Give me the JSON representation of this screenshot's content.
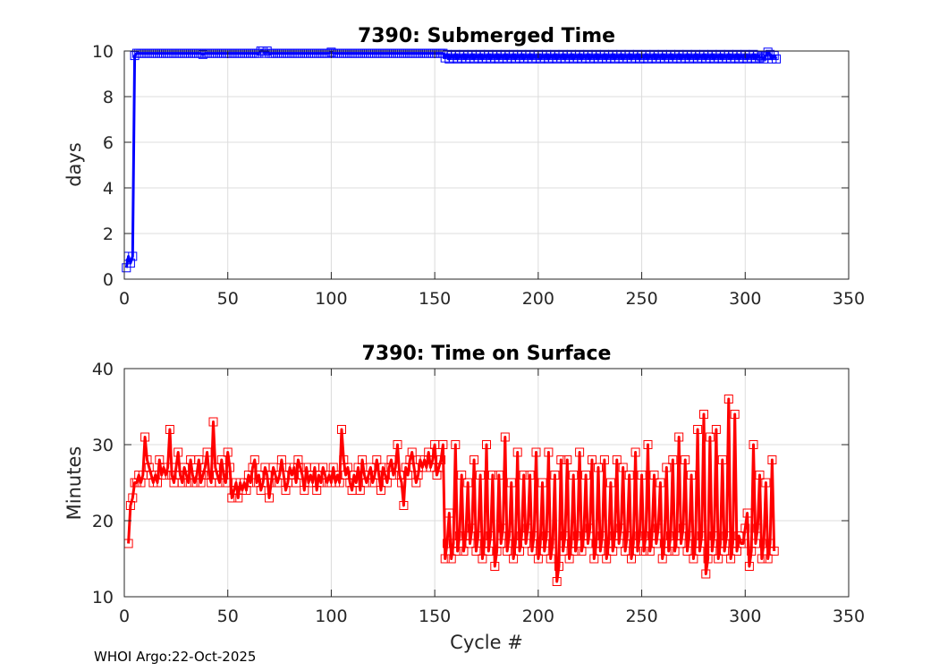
{
  "footer": "WHOI Argo:22-Oct-2025",
  "colors": {
    "top_series": "#0000ff",
    "bottom_series": "#ff0000",
    "grid": "#dcdcdc",
    "axes": "#262626"
  },
  "chart_data": [
    {
      "type": "line",
      "title": "7390: Submerged Time",
      "xlabel": "",
      "ylabel": "days",
      "xlim": [
        0,
        350
      ],
      "ylim": [
        0,
        10
      ],
      "xticks": [
        0,
        50,
        100,
        150,
        200,
        250,
        300,
        350
      ],
      "yticks": [
        0,
        2,
        4,
        6,
        8,
        10
      ],
      "grid": true,
      "marker": "square",
      "series": [
        {
          "name": "Submerged Time",
          "segments": [
            {
              "x_start": 1,
              "x_end": 5,
              "values": [
                0.5,
                1.0,
                0.7,
                1.0,
                9.8
              ]
            },
            {
              "x_start": 6,
              "x_end": 154,
              "constant": 9.9,
              "bumps": [
                [
                  66,
                  10.0
                ],
                [
                  67,
                  10.0
                ],
                [
                  69,
                  10.0
                ],
                [
                  38,
                  9.85
                ],
                [
                  100,
                  9.95
                ]
              ]
            },
            {
              "x_start": 155,
              "x_end": 315,
              "pattern": [
                9.7,
                9.85,
                9.65,
                9.8
              ],
              "bumps": [
                [
                  311,
                  9.95
                ],
                [
                  308,
                  9.75
                ],
                [
                  315,
                  9.65
                ]
              ]
            }
          ]
        }
      ]
    },
    {
      "type": "line",
      "title": "7390: Time on Surface",
      "xlabel": "Cycle #",
      "ylabel": "Minutes",
      "xlim": [
        0,
        350
      ],
      "ylim": [
        10,
        40
      ],
      "xticks": [
        0,
        50,
        100,
        150,
        200,
        250,
        300,
        350
      ],
      "yticks": [
        10,
        20,
        30,
        40
      ],
      "grid": true,
      "marker": "square",
      "series": [
        {
          "name": "Time on Surface",
          "x_start": 2,
          "values": [
            17,
            22,
            23,
            25,
            25,
            26,
            25,
            26,
            31,
            28,
            27,
            26,
            25,
            26,
            25,
            28,
            26,
            27,
            26,
            27,
            32,
            26,
            25,
            27,
            29,
            26,
            25,
            27,
            26,
            25,
            28,
            26,
            25,
            26,
            28,
            25,
            26,
            27,
            29,
            26,
            25,
            33,
            27,
            26,
            25,
            28,
            26,
            25,
            29,
            27,
            23,
            24,
            25,
            23,
            25,
            24,
            25,
            24,
            26,
            25,
            27,
            28,
            25,
            26,
            24,
            25,
            27,
            26,
            23,
            25,
            27,
            26,
            25,
            26,
            28,
            26,
            24,
            25,
            27,
            26,
            27,
            25,
            28,
            27,
            26,
            24,
            27,
            25,
            26,
            25,
            27,
            24,
            26,
            25,
            27,
            26,
            25,
            26,
            25,
            27,
            25,
            26,
            25,
            32,
            28,
            26,
            27,
            25,
            24,
            26,
            25,
            27,
            24,
            28,
            26,
            25,
            26,
            27,
            25,
            26,
            28,
            26,
            24,
            27,
            26,
            25,
            27,
            28,
            26,
            27,
            30,
            26,
            25,
            22,
            27,
            26,
            28,
            29,
            27,
            25,
            26,
            28,
            27,
            28,
            27,
            29,
            27,
            28,
            30,
            26,
            27,
            28,
            30
          ],
          "oscillating": {
            "x_start": 155,
            "x_end": 314,
            "lows": [
              15,
              15,
              16,
              16,
              17,
              16,
              15,
              16,
              14,
              17,
              16,
              15,
              16,
              17,
              16,
              15,
              16,
              15,
              12,
              16,
              15,
              16,
              16,
              17,
              15,
              16,
              15,
              16,
              17,
              16,
              15,
              16,
              16,
              16,
              17,
              15,
              16,
              16,
              17,
              16,
              15,
              16,
              13,
              16,
              15,
              16,
              15,
              16,
              17,
              14,
              17
            ],
            "highs": [
              21,
              30,
              26,
              25,
              28,
              26,
              30,
              26,
              26,
              31,
              25,
              29,
              26,
              26,
              29,
              25,
              29,
              26,
              28,
              28,
              26,
              29,
              26,
              28,
              27,
              28,
              25,
              28,
              27,
              26,
              29,
              26,
              30,
              26,
              25,
              27,
              28,
              31,
              28,
              26,
              32,
              34,
              31,
              32,
              28,
              36,
              34,
              17
            ]
          }
        }
      ]
    }
  ]
}
